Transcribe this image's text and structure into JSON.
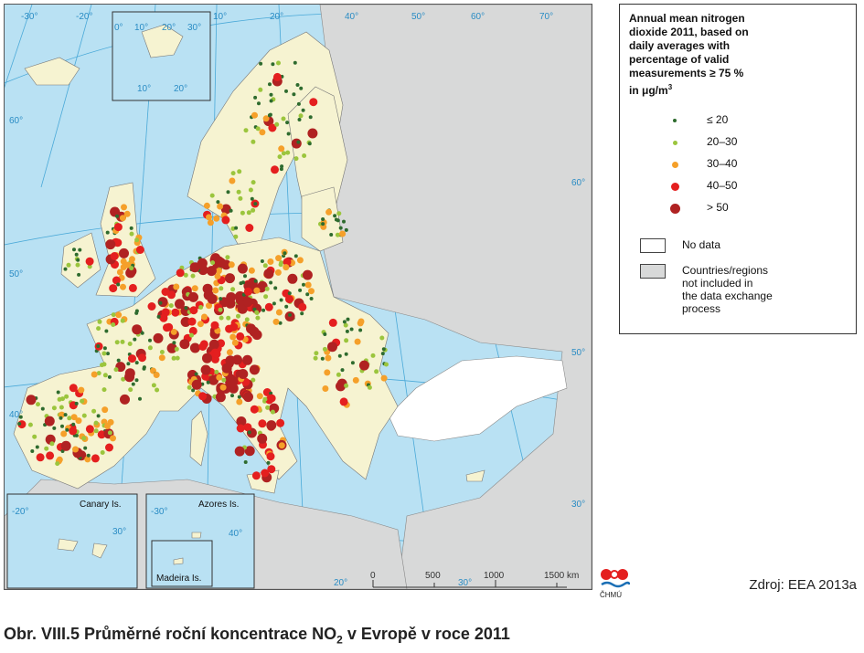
{
  "map": {
    "longitude_labels": [
      "-30°",
      "-20°",
      "-10°",
      "0°",
      "10°",
      "20°",
      "30°",
      "40°",
      "50°",
      "60°",
      "70°"
    ],
    "latitude_labels": [
      "60°",
      "50°",
      "40°",
      "30°"
    ],
    "svalbard_inset_labels": [
      "0°",
      "10°",
      "20°",
      "30°",
      "10°",
      "20°"
    ],
    "canary_inset": {
      "title": "Canary Is.",
      "deg1": "-20°",
      "deg2": "30°"
    },
    "azores_inset": {
      "title": "Azores Is.",
      "deg1": "-30°",
      "deg2": "40°"
    },
    "madeira_inset": {
      "title": "Madeira Is."
    },
    "scale": {
      "ticks": [
        "0",
        "500",
        "1000",
        "1500 km"
      ],
      "deg": "20°",
      "deg2": "30°"
    }
  },
  "legend": {
    "title_lines": [
      "Annual mean nitrogen",
      "dioxide 2011, based on",
      "daily averages with",
      "percentage of valid",
      "measurements  ≥ 75 %",
      "in μg/m"
    ],
    "title_sup": "3",
    "classes": [
      {
        "label": "≤ 20",
        "color": "#2e6b2e",
        "size": 4
      },
      {
        "label": "20–30",
        "color": "#9bc53d",
        "size": 5
      },
      {
        "label": "30–40",
        "color": "#f5a02a",
        "size": 7
      },
      {
        "label": "40–50",
        "color": "#e41f1f",
        "size": 9
      },
      {
        "label": "> 50",
        "color": "#b02222",
        "size": 11
      }
    ],
    "no_data_label": "No data",
    "excluded_lines": [
      "Countries/regions",
      "not included in",
      "the data exchange",
      "process"
    ]
  },
  "logo_text": "ČHMÚ",
  "source": "Zdroj: EEA 2013a",
  "caption": {
    "prefix": "Obr. VIII.5  Průměrné roční koncentrace NO",
    "sub": "2",
    "suffix": " v Evropě v roce 2011"
  }
}
